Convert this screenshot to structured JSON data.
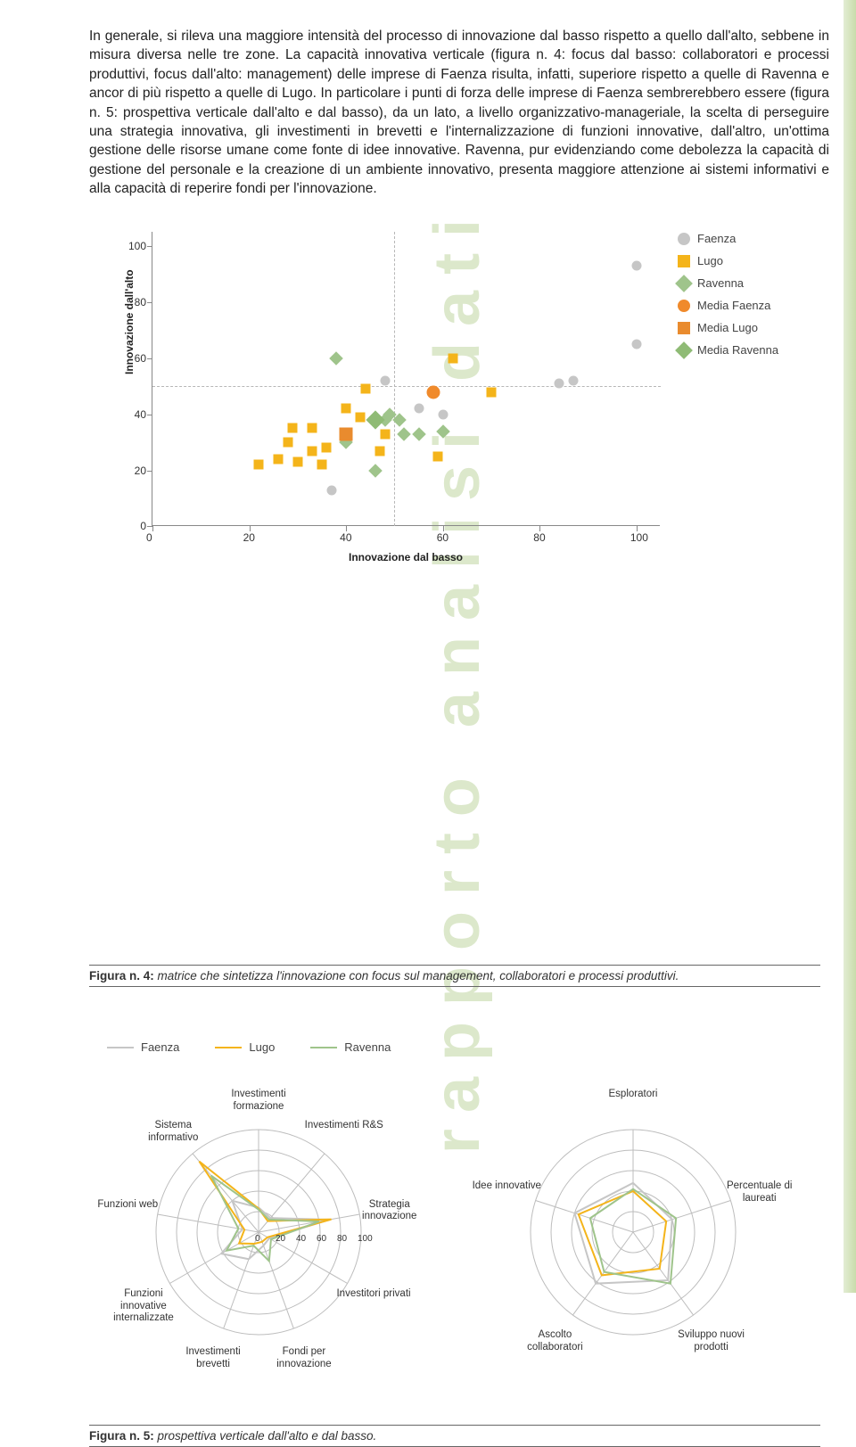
{
  "side_vertical_text": "rapporto analisi dati",
  "paragraph": "In generale, si rileva una maggiore intensità del processo di innovazione dal basso rispetto a quello dall'alto, sebbene in misura diversa nelle tre zone. La capacità innovativa verticale (figura n. 4: focus dal basso: collaboratori e processi produttivi, focus dall'alto: management) delle imprese di Faenza risulta, infatti, superiore rispetto a quelle di Ravenna e ancor di più rispetto a quelle di Lugo. In particolare i punti di forza delle imprese di Faenza sembrerebbero essere (figura n. 5: prospettiva verticale dall'alto e dal basso), da un lato, a livello organizzativo-manageriale, la scelta di perseguire una strategia innovativa, gli investimenti in brevetti e l'internalizzazione di funzioni innovative, dall'altro, un'ottima gestione delle risorse umane come fonte di idee innovative. Ravenna, pur evidenziando come debolezza la capacità di gestione del personale e la creazione di un ambiente innovativo, presenta maggiore attenzione ai sistemi informativi e alla capacità di reperire fondi per l'innovazione.",
  "scatter": {
    "type": "scatter",
    "xlabel": "Innovazione dal basso",
    "ylabel": "Innovazione dall'alto",
    "xlim": [
      0,
      105
    ],
    "ylim": [
      0,
      105
    ],
    "xticks": [
      0,
      20,
      40,
      60,
      80,
      100
    ],
    "yticks": [
      0,
      20,
      40,
      60,
      80,
      100
    ],
    "ref_x": 50,
    "ref_y": 50,
    "grid_color": "#b7b7b7",
    "axis_color": "#888888",
    "dash": "4,4",
    "marker_size": 11,
    "media_marker_size": 15,
    "background": "#ffffff",
    "series": {
      "Faenza": {
        "shape": "circle",
        "color": "#c6c6c6",
        "points": [
          [
            37,
            13
          ],
          [
            48,
            52
          ],
          [
            55,
            42
          ],
          [
            60,
            40
          ],
          [
            84,
            51
          ],
          [
            87,
            52
          ],
          [
            100,
            93
          ],
          [
            100,
            65
          ]
        ]
      },
      "Lugo": {
        "shape": "square",
        "color": "#f4b41a",
        "points": [
          [
            22,
            22
          ],
          [
            26,
            24
          ],
          [
            28,
            30
          ],
          [
            29,
            35
          ],
          [
            30,
            23
          ],
          [
            33,
            35
          ],
          [
            33,
            27
          ],
          [
            35,
            22
          ],
          [
            36,
            28
          ],
          [
            40,
            42
          ],
          [
            43,
            39
          ],
          [
            44,
            49
          ],
          [
            47,
            27
          ],
          [
            48,
            33
          ],
          [
            59,
            25
          ],
          [
            62,
            60
          ],
          [
            70,
            48
          ]
        ]
      },
      "Ravenna": {
        "shape": "diamond",
        "color": "#9fc48b",
        "points": [
          [
            38,
            60
          ],
          [
            40,
            30
          ],
          [
            46,
            20
          ],
          [
            48,
            38
          ],
          [
            49,
            40
          ],
          [
            51,
            38
          ],
          [
            52,
            33
          ],
          [
            55,
            33
          ],
          [
            60,
            34
          ]
        ]
      },
      "Media Faenza": {
        "shape": "circle",
        "color": "#f08a2b",
        "points": [
          [
            58,
            48
          ]
        ]
      },
      "Media Lugo": {
        "shape": "square",
        "color": "#e98b2e",
        "points": [
          [
            40,
            33
          ]
        ]
      },
      "Media Ravenna": {
        "shape": "diamond",
        "color": "#8fbb75",
        "points": [
          [
            46,
            38
          ]
        ]
      }
    },
    "legend_order": [
      "Faenza",
      "Lugo",
      "Ravenna",
      "Media Faenza",
      "Media Lugo",
      "Media Ravenna"
    ]
  },
  "caption4_bold": "Figura n. 4:",
  "caption4_text": " matrice che sintetizza l'innovazione con focus sul management, collaboratori e processi produttivi.",
  "radar_legend": {
    "Faenza": "#c6c6c6",
    "Lugo": "#f4b41a",
    "Ravenna": "#9fc48b"
  },
  "radar1": {
    "type": "radar",
    "max": 100,
    "rings": [
      20,
      40,
      60,
      80,
      100
    ],
    "ring_color": "#bdbdbd",
    "axes": [
      "Investimenti formazione",
      "Investimenti R&S",
      "Strategia innovazione",
      "Investitori privati",
      "Fondi per innovazione",
      "Investimenti brevetti",
      "Funzioni innovative internalizzate",
      "Funzioni web",
      "Sistema informativo"
    ],
    "tick_labels": [
      "0",
      "20",
      "40",
      "60",
      "80",
      "100"
    ],
    "series": {
      "Faenza": {
        "color": "#c6c6c6",
        "values": [
          24,
          18,
          70,
          12,
          14,
          28,
          42,
          16,
          40
        ]
      },
      "Lugo": {
        "color": "#f4b41a",
        "values": [
          23,
          14,
          72,
          10,
          10,
          12,
          22,
          14,
          90
        ]
      },
      "Ravenna": {
        "color": "#9fc48b",
        "values": [
          22,
          16,
          60,
          14,
          30,
          14,
          36,
          20,
          72
        ]
      }
    }
  },
  "radar2": {
    "type": "radar",
    "max": 100,
    "rings": [
      20,
      40,
      60,
      80,
      100
    ],
    "ring_color": "#bdbdbd",
    "axes": [
      "Esploratori",
      "Percentuale di laureati",
      "Sviluppo nuovi prodotti",
      "Ascolto collaboratori",
      "Idee innovative"
    ],
    "series": {
      "Faenza": {
        "color": "#c6c6c6",
        "values": [
          48,
          40,
          58,
          62,
          60
        ]
      },
      "Lugo": {
        "color": "#f4b41a",
        "values": [
          40,
          34,
          44,
          52,
          56
        ]
      },
      "Ravenna": {
        "color": "#9fc48b",
        "values": [
          42,
          44,
          62,
          48,
          44
        ]
      }
    }
  },
  "caption5_bold": "Figura n. 5:",
  "caption5_text": " prospettiva verticale dall'alto e dal basso."
}
